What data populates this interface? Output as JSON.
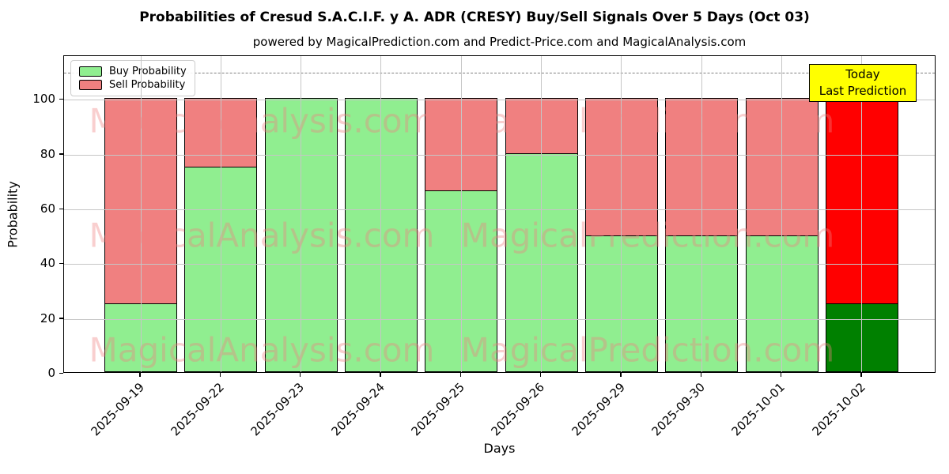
{
  "title": "Probabilities of Cresud S.A.C.I.F. y A. ADR (CRESY) Buy/Sell Signals Over 5 Days (Oct 03)",
  "subtitle": "powered by MagicalPrediction.com and Predict-Price.com and MagicalAnalysis.com",
  "legend": {
    "buy_label": "Buy Probability",
    "sell_label": "Sell Probability"
  },
  "annotation": {
    "line1": "Today",
    "line2": "Last Prediction",
    "bg_color": "#FFFF00"
  },
  "watermark": {
    "left_text": "MagicalAnalysis.com",
    "right_text": "MagicalPrediction.com"
  },
  "axes": {
    "xlabel": "Days",
    "ylabel": "Probability",
    "yticks": [
      0,
      20,
      40,
      60,
      80,
      100
    ],
    "ylim": [
      0,
      116
    ],
    "dashed_line_y": 110,
    "grid": true
  },
  "colors": {
    "buy": "#90EE90",
    "sell": "#F08080",
    "today_buy": "#008000",
    "today_sell": "#FF0000",
    "grid": "#c6c6c6"
  },
  "chart_data": {
    "type": "bar",
    "stacked": true,
    "title": "Probabilities of Cresud S.A.C.I.F. y A. ADR (CRESY) Buy/Sell Signals Over 5 Days (Oct 03)",
    "xlabel": "Days",
    "ylabel": "Probability",
    "ylim": [
      0,
      116
    ],
    "grid": true,
    "legend_position": "upper left",
    "categories": [
      "2025-09-19",
      "2025-09-22",
      "2025-09-23",
      "2025-09-24",
      "2025-09-25",
      "2025-09-26",
      "2025-09-29",
      "2025-09-30",
      "2025-10-01",
      "2025-10-02"
    ],
    "series": [
      {
        "name": "Buy Probability",
        "values": [
          25,
          75,
          100,
          100,
          66.5,
          80,
          50,
          50,
          50,
          25
        ]
      },
      {
        "name": "Sell Probability",
        "values": [
          75,
          25,
          0,
          0,
          33.5,
          20,
          50,
          50,
          50,
          75
        ]
      }
    ],
    "annotations": [
      {
        "text": "Today\nLast Prediction",
        "target_category": "2025-10-02",
        "y": 110
      }
    ],
    "reference_line_y": 110
  }
}
